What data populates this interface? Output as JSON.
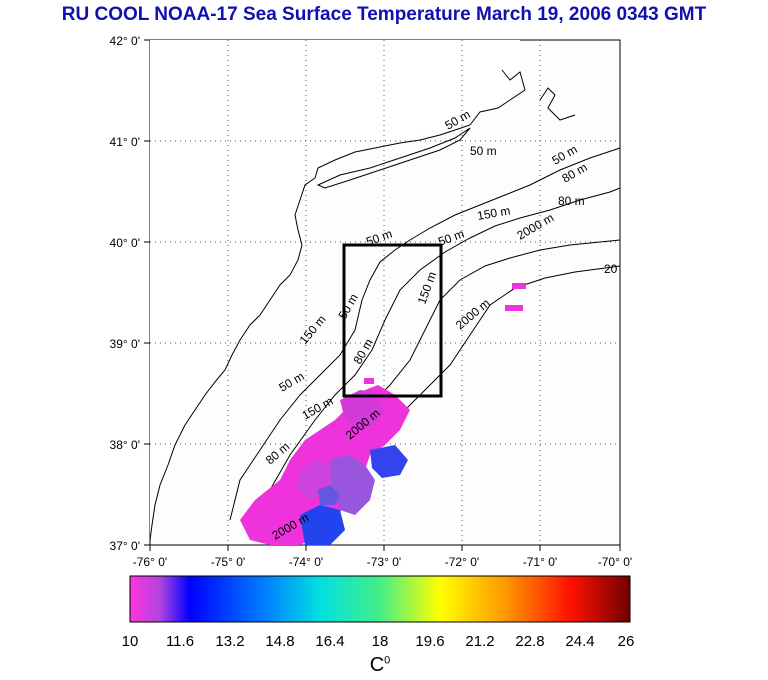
{
  "title": "RU COOL  NOAA-17 Sea Surface Temperature March 19, 2006 0343 GMT",
  "map": {
    "lon_labels": [
      "-76° 0'",
      "-75° 0'",
      "-74° 0'",
      "-73° 0'",
      "-72° 0'",
      "-71° 0'",
      "-70° 0'"
    ],
    "lat_labels": [
      "42° 0'",
      "41° 0'",
      "40° 0'",
      "39° 0'",
      "38° 0'",
      "37° 0'"
    ],
    "contour_labels": [
      "50 m",
      "50 m",
      "50 m",
      "80 m",
      "80 m",
      "150 m",
      "2000 m",
      "20",
      "50 m",
      "50 m",
      "50 m",
      "150 m",
      "80 m",
      "150 m",
      "2000 m",
      "50 m",
      "150 m",
      "80 m",
      "2000 m",
      "2000 m"
    ],
    "study_box": {
      "lon_min": -73.45,
      "lon_max": -72.45,
      "lat_min": 38.5,
      "lat_max": 40.0
    }
  },
  "colorbar": {
    "min": 10,
    "max": 26,
    "tick_labels": [
      "10",
      "11.6",
      "13.2",
      "14.8",
      "16.4",
      "18",
      "19.6",
      "21.2",
      "22.8",
      "24.4",
      "26"
    ],
    "unit_base": "C",
    "unit_sup": "0"
  },
  "colors": {
    "title": "#1010b0",
    "land": "#ffffff",
    "ocean": "#fdfdfb"
  }
}
